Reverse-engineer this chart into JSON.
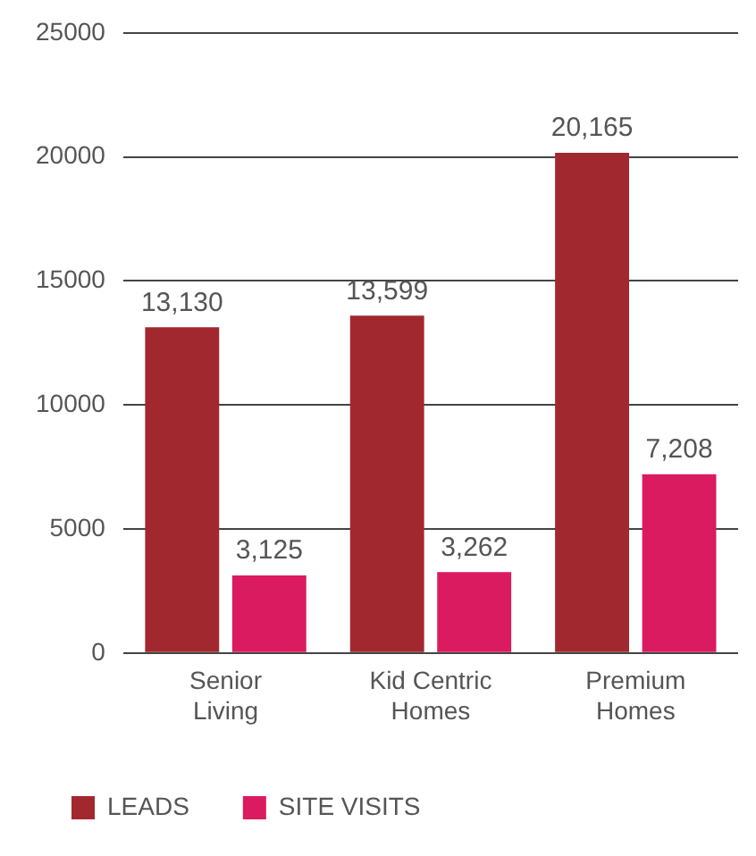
{
  "chart_data": {
    "type": "bar",
    "categories": [
      "Senior Living",
      "Kid Centric Homes",
      "Premium Homes"
    ],
    "series": [
      {
        "name": "LEADS",
        "color": "#a1282f",
        "values": [
          13130,
          13599,
          20165
        ],
        "value_labels": [
          "13,130",
          "13,599",
          "20,165"
        ]
      },
      {
        "name": "SITE VISITS",
        "color": "#db1b5f",
        "values": [
          3125,
          3262,
          7208
        ],
        "value_labels": [
          "3,125",
          "3,262",
          "7,208"
        ]
      }
    ],
    "ylim": [
      0,
      25000
    ],
    "yticks": [
      0,
      5000,
      10000,
      15000,
      20000,
      25000
    ],
    "grid": "y",
    "legend": "bottom left"
  }
}
